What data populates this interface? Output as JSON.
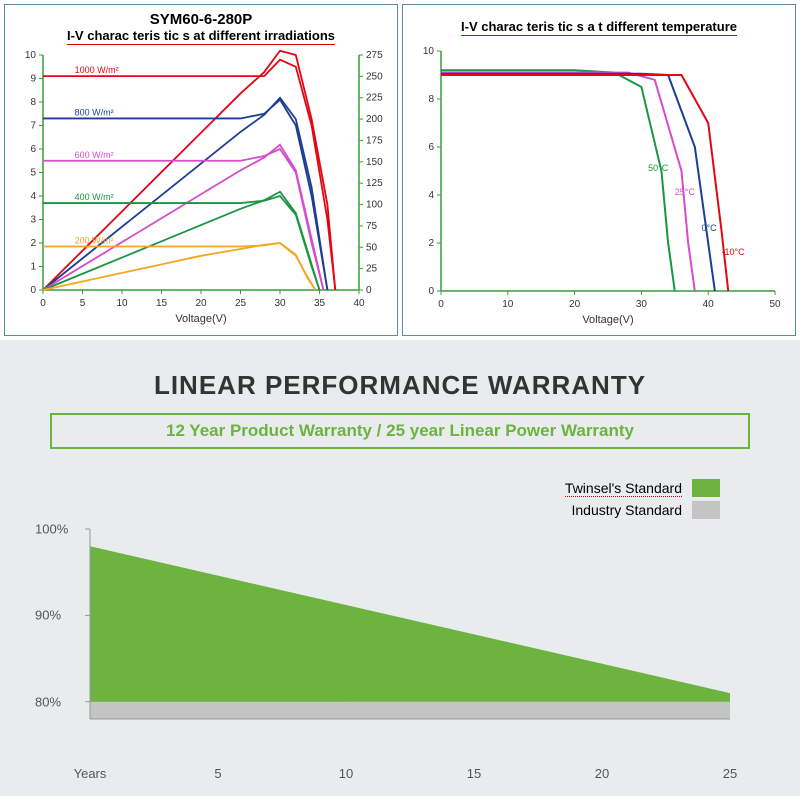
{
  "irradiation_chart": {
    "model_title": "SYM60-6-280P",
    "subtitle": "I-V charac teris tic s at different irradiations",
    "xlabel": "Voltage(V)",
    "xlim": [
      0,
      40
    ],
    "xtick_step": 5,
    "ylim_left": [
      0,
      10
    ],
    "ytick_left_step": 1,
    "ylim_right": [
      0,
      275
    ],
    "ytick_right_step": 25,
    "axis_color": "#3a9c3a",
    "series": [
      {
        "label": "1000 W/m²",
        "color": "#e30613",
        "iv": [
          [
            0,
            9.1
          ],
          [
            5,
            9.1
          ],
          [
            10,
            9.1
          ],
          [
            15,
            9.1
          ],
          [
            20,
            9.1
          ],
          [
            25,
            9.1
          ],
          [
            28,
            9.1
          ],
          [
            30,
            9.8
          ],
          [
            32,
            9.5
          ],
          [
            34,
            7
          ],
          [
            36,
            3
          ],
          [
            37,
            0
          ]
        ],
        "pv": [
          [
            0,
            0
          ],
          [
            5,
            46
          ],
          [
            10,
            92
          ],
          [
            15,
            138
          ],
          [
            20,
            184
          ],
          [
            25,
            230
          ],
          [
            28,
            255
          ],
          [
            30,
            280
          ],
          [
            32,
            275
          ],
          [
            34,
            200
          ],
          [
            36,
            100
          ],
          [
            37,
            0
          ]
        ]
      },
      {
        "label": "800 W/m²",
        "color": "#1c3e93",
        "iv": [
          [
            0,
            7.3
          ],
          [
            5,
            7.3
          ],
          [
            10,
            7.3
          ],
          [
            15,
            7.3
          ],
          [
            20,
            7.3
          ],
          [
            25,
            7.3
          ],
          [
            28,
            7.5
          ],
          [
            30,
            8.1
          ],
          [
            32,
            7
          ],
          [
            34,
            4
          ],
          [
            36,
            0
          ]
        ],
        "pv": [
          [
            0,
            0
          ],
          [
            5,
            37
          ],
          [
            10,
            74
          ],
          [
            15,
            111
          ],
          [
            20,
            148
          ],
          [
            25,
            185
          ],
          [
            28,
            205
          ],
          [
            30,
            225
          ],
          [
            32,
            200
          ],
          [
            34,
            120
          ],
          [
            36,
            0
          ]
        ]
      },
      {
        "label": "600 W/m²",
        "color": "#d64ccc",
        "iv": [
          [
            0,
            5.5
          ],
          [
            5,
            5.5
          ],
          [
            10,
            5.5
          ],
          [
            15,
            5.5
          ],
          [
            20,
            5.5
          ],
          [
            25,
            5.5
          ],
          [
            28,
            5.7
          ],
          [
            30,
            6.0
          ],
          [
            32,
            5
          ],
          [
            34,
            2
          ],
          [
            35.5,
            0
          ]
        ],
        "pv": [
          [
            0,
            0
          ],
          [
            5,
            28
          ],
          [
            10,
            56
          ],
          [
            15,
            84
          ],
          [
            20,
            112
          ],
          [
            25,
            140
          ],
          [
            28,
            155
          ],
          [
            30,
            170
          ],
          [
            32,
            140
          ],
          [
            34,
            60
          ],
          [
            35.5,
            0
          ]
        ]
      },
      {
        "label": "400 W/m²",
        "color": "#1a9641",
        "iv": [
          [
            0,
            3.7
          ],
          [
            5,
            3.7
          ],
          [
            10,
            3.7
          ],
          [
            15,
            3.7
          ],
          [
            20,
            3.7
          ],
          [
            25,
            3.7
          ],
          [
            28,
            3.8
          ],
          [
            30,
            4.0
          ],
          [
            32,
            3.2
          ],
          [
            34,
            1
          ],
          [
            35,
            0
          ]
        ],
        "pv": [
          [
            0,
            0
          ],
          [
            5,
            19
          ],
          [
            10,
            38
          ],
          [
            15,
            57
          ],
          [
            20,
            76
          ],
          [
            25,
            95
          ],
          [
            28,
            105
          ],
          [
            30,
            115
          ],
          [
            32,
            90
          ],
          [
            34,
            30
          ],
          [
            35,
            0
          ]
        ]
      },
      {
        "label": "200 W/m²",
        "color": "#f5a623",
        "iv": [
          [
            0,
            1.85
          ],
          [
            5,
            1.85
          ],
          [
            10,
            1.85
          ],
          [
            15,
            1.85
          ],
          [
            20,
            1.85
          ],
          [
            25,
            1.85
          ],
          [
            28,
            1.9
          ],
          [
            30,
            2.0
          ],
          [
            32,
            1.5
          ],
          [
            33.5,
            0.5
          ],
          [
            34.5,
            0
          ]
        ],
        "pv": [
          [
            0,
            0
          ],
          [
            5,
            10
          ],
          [
            10,
            20
          ],
          [
            15,
            30
          ],
          [
            20,
            40
          ],
          [
            25,
            48
          ],
          [
            28,
            53
          ],
          [
            30,
            55
          ],
          [
            32,
            40
          ],
          [
            33.5,
            15
          ],
          [
            34.5,
            0
          ]
        ]
      }
    ]
  },
  "temperature_chart": {
    "subtitle": "I-V charac teris tic s a t different temperature",
    "xlabel": "Voltage(V)",
    "xlim": [
      0,
      50
    ],
    "xtick_step": 10,
    "ylim": [
      0,
      10
    ],
    "ytick_step": 2,
    "axis_color": "#3a9c3a",
    "series": [
      {
        "label": "50°C",
        "color": "#1a9641",
        "pts": [
          [
            0,
            9.2
          ],
          [
            10,
            9.2
          ],
          [
            20,
            9.2
          ],
          [
            26,
            9.1
          ],
          [
            30,
            8.5
          ],
          [
            33,
            5
          ],
          [
            34,
            2
          ],
          [
            35,
            0
          ]
        ]
      },
      {
        "label": "25°C",
        "color": "#d64ccc",
        "pts": [
          [
            0,
            9.1
          ],
          [
            10,
            9.1
          ],
          [
            20,
            9.1
          ],
          [
            28,
            9.1
          ],
          [
            32,
            8.8
          ],
          [
            36,
            5
          ],
          [
            37,
            2
          ],
          [
            38,
            0
          ]
        ]
      },
      {
        "label": "0°C",
        "color": "#1c3e93",
        "pts": [
          [
            0,
            9.05
          ],
          [
            10,
            9.05
          ],
          [
            20,
            9.05
          ],
          [
            30,
            9.05
          ],
          [
            34,
            9.0
          ],
          [
            38,
            6
          ],
          [
            40,
            2
          ],
          [
            41,
            0
          ]
        ]
      },
      {
        "label": "-10°C",
        "color": "#e30613",
        "pts": [
          [
            0,
            9.0
          ],
          [
            10,
            9.0
          ],
          [
            20,
            9.0
          ],
          [
            32,
            9.0
          ],
          [
            36,
            9.0
          ],
          [
            40,
            7
          ],
          [
            42,
            2.5
          ],
          [
            43,
            0
          ]
        ]
      }
    ]
  },
  "warranty": {
    "title": "LINEAR PERFORMANCE WARRANTY",
    "banner": "12 Year Product Warranty / 25 year Linear Power Warranty",
    "legend": [
      {
        "label": "Twinsel's Standard",
        "color": "#6db33f"
      },
      {
        "label": "Industry Standard",
        "color": "#c4c4c4"
      }
    ],
    "y_ticks": [
      "100%",
      "90%",
      "80%"
    ],
    "x_ticks": [
      "Years",
      "5",
      "10",
      "15",
      "20",
      "25"
    ],
    "x_positions": [
      0,
      5,
      10,
      15,
      20,
      25
    ],
    "twinsel": {
      "color": "#6db33f",
      "poly": [
        [
          0,
          98
        ],
        [
          25,
          81
        ],
        [
          25,
          80
        ],
        [
          0,
          80
        ]
      ]
    },
    "industry": {
      "color": "#c4c4c4",
      "poly": [
        [
          0,
          90
        ],
        [
          10,
          90
        ],
        [
          10,
          80
        ],
        [
          25,
          80
        ],
        [
          25,
          78
        ],
        [
          0,
          78
        ]
      ]
    },
    "xlim": [
      0,
      25
    ],
    "ylim": [
      78,
      100
    ]
  }
}
